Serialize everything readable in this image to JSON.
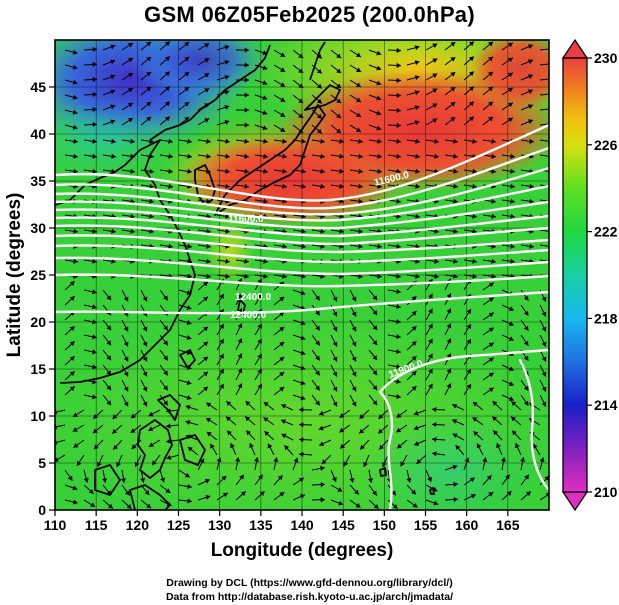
{
  "title": "GSM 06Z05Feb2025 (200.0hPa)",
  "axes": {
    "xlabel": "Longitude (degrees)",
    "ylabel": "Latitude  (degrees)",
    "x_ticks": [
      110,
      115,
      120,
      125,
      130,
      135,
      140,
      145,
      150,
      155,
      160,
      165
    ],
    "y_ticks": [
      0,
      5,
      10,
      15,
      20,
      25,
      30,
      35,
      40,
      45
    ],
    "xlim": [
      110,
      170
    ],
    "ylim": [
      0,
      50
    ]
  },
  "colorbar": {
    "ticks": [
      210,
      214,
      218,
      222,
      226,
      230
    ],
    "range": [
      210,
      230
    ],
    "colors": [
      "#e030c0",
      "#1820c8",
      "#18b8f0",
      "#20d850",
      "#60e020",
      "#f0d000",
      "#f08020",
      "#e84040"
    ]
  },
  "contour_labels": {
    "top": "11600.0",
    "left_top": "11600.0",
    "left_mid": "12400.0",
    "bottom": "12400.0",
    "east": "11900.0"
  },
  "credits": {
    "line1": "Drawing by DCL (https://www.gfd-dennou.org/library/dcl/)",
    "line2": "Data from http://database.rish.kyoto-u.ac.jp/arch/jmadata/"
  }
}
